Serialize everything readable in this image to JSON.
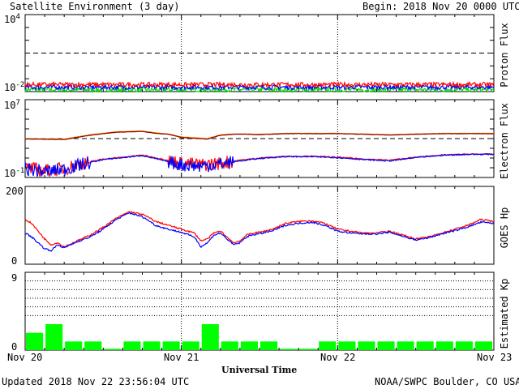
{
  "header": {
    "title": "Satellite Environment (3 day)",
    "begin_label": "Begin:",
    "begin_value": "2018 Nov 20 0000 UTC"
  },
  "footer": {
    "updated": "Updated 2018 Nov 22 23:56:04 UTC",
    "source": "NOAA/SWPC Boulder, CO USA",
    "xlabel": "Universal Time"
  },
  "xaxis": {
    "ticks": [
      "Nov 20",
      "Nov 21",
      "Nov 22",
      "Nov 23"
    ]
  },
  "chart_data": [
    {
      "type": "line",
      "ylabel": "Proton Flux",
      "yscale": "log",
      "ylim": [
        0.01,
        10000
      ],
      "y_tick_labels": {
        "top_base": "10",
        "top_exp": "4",
        "bottom_base": "10",
        "bottom_exp": "-2"
      },
      "threshold": 10,
      "series": [
        {
          "color": "#ff0000",
          "level": 0.035
        },
        {
          "color": "#0000ff",
          "level": 0.022
        },
        {
          "color": "#00dd00",
          "level": 0.014
        }
      ]
    },
    {
      "type": "line",
      "ylabel": "Electron Flux",
      "yscale": "log",
      "ylim": [
        0.1,
        10000000
      ],
      "y_tick_labels": {
        "top_base": "10",
        "top_exp": "7",
        "bottom_base": "10",
        "bottom_exp": "-1"
      },
      "threshold": 1000,
      "series": [
        {
          "color": "#ff9900",
          "x_hours": [
            0,
            6,
            10,
            14,
            18,
            20,
            22,
            24,
            28,
            30,
            32,
            34,
            36,
            40,
            44,
            48,
            52,
            56,
            60,
            64,
            68,
            72
          ],
          "y": [
            1000,
            900,
            2500,
            5000,
            6000,
            4000,
            3000,
            1500,
            1000,
            2500,
            3000,
            3000,
            2800,
            3500,
            3500,
            3500,
            3000,
            2500,
            3000,
            3500,
            3500,
            3500
          ]
        },
        {
          "color": "#880000",
          "x_hours": [
            0,
            6,
            10,
            14,
            18,
            20,
            22,
            24,
            28,
            30,
            32,
            34,
            36,
            40,
            44,
            48,
            52,
            56,
            60,
            64,
            68,
            72
          ],
          "y": [
            900,
            800,
            2200,
            4500,
            5500,
            3500,
            2800,
            1300,
            900,
            2200,
            2800,
            2800,
            2500,
            3200,
            3200,
            3200,
            2800,
            2300,
            2800,
            3200,
            3200,
            3200
          ]
        },
        {
          "color": "#ff0000",
          "x_hours": [
            0,
            3,
            6,
            9,
            12,
            15,
            18,
            21,
            24,
            27,
            30,
            33,
            36,
            40,
            44,
            48,
            52,
            56,
            60,
            64,
            68,
            72
          ],
          "y": [
            1,
            0.5,
            0.8,
            3,
            8,
            12,
            20,
            8,
            3,
            2,
            3,
            6,
            10,
            15,
            15,
            12,
            8,
            6,
            12,
            20,
            25,
            25
          ]
        },
        {
          "color": "#0000ff",
          "x_hours": [
            0,
            3,
            6,
            9,
            12,
            15,
            18,
            21,
            24,
            27,
            30,
            33,
            36,
            40,
            44,
            48,
            52,
            56,
            60,
            64,
            68,
            72
          ],
          "y": [
            0.8,
            0.4,
            0.7,
            2.5,
            7,
            11,
            18,
            6,
            2,
            1.5,
            2.5,
            5,
            9,
            14,
            14,
            11,
            7,
            5,
            11,
            19,
            24,
            24
          ]
        }
      ]
    },
    {
      "type": "line",
      "ylabel": "GOES Hp",
      "ylim": [
        0,
        200
      ],
      "y_tick_labels": {
        "top": "200",
        "bottom": "0"
      },
      "series": [
        {
          "color": "#ff0000",
          "x_hours": [
            0,
            1,
            2,
            3,
            4,
            5,
            6,
            7,
            8,
            10,
            12,
            14,
            16,
            18,
            19,
            20,
            22,
            24,
            26,
            27,
            28,
            29,
            30,
            31,
            32,
            33,
            34,
            35,
            36,
            38,
            40,
            42,
            44,
            46,
            48,
            50,
            52,
            54,
            56,
            58,
            60,
            62,
            64,
            66,
            68,
            70,
            72
          ],
          "y": [
            115,
            105,
            85,
            65,
            50,
            55,
            45,
            52,
            60,
            75,
            95,
            118,
            135,
            128,
            120,
            110,
            100,
            90,
            80,
            60,
            65,
            80,
            85,
            70,
            55,
            60,
            75,
            80,
            82,
            90,
            105,
            110,
            112,
            105,
            90,
            85,
            80,
            80,
            85,
            75,
            65,
            70,
            80,
            90,
            100,
            115,
            110
          ]
        },
        {
          "color": "#0000ff",
          "x_hours": [
            0,
            1,
            2,
            3,
            4,
            5,
            6,
            7,
            8,
            10,
            12,
            14,
            16,
            18,
            19,
            20,
            22,
            24,
            26,
            27,
            28,
            29,
            30,
            31,
            32,
            33,
            34,
            35,
            36,
            38,
            40,
            42,
            44,
            46,
            48,
            50,
            52,
            54,
            56,
            58,
            60,
            62,
            64,
            66,
            68,
            70,
            72
          ],
          "y": [
            80,
            70,
            55,
            40,
            35,
            50,
            42,
            50,
            58,
            70,
            90,
            115,
            132,
            122,
            112,
            100,
            90,
            82,
            70,
            45,
            55,
            75,
            80,
            65,
            50,
            55,
            70,
            76,
            78,
            86,
            100,
            105,
            108,
            100,
            85,
            80,
            78,
            78,
            82,
            72,
            62,
            68,
            78,
            86,
            96,
            108,
            105
          ]
        }
      ]
    },
    {
      "type": "bar",
      "ylabel": "Estimated Kp",
      "ylim": [
        0,
        9
      ],
      "y_tick_labels": {
        "top": "9",
        "bottom": "0"
      },
      "grid_lines": [
        4,
        5,
        6,
        7,
        8
      ],
      "color": "#00ff00",
      "values": [
        2,
        3,
        1,
        1,
        0,
        1,
        1,
        1,
        1,
        3,
        1,
        1,
        1,
        0,
        0,
        1,
        1,
        1,
        1,
        1,
        1,
        1,
        1,
        1
      ]
    }
  ]
}
